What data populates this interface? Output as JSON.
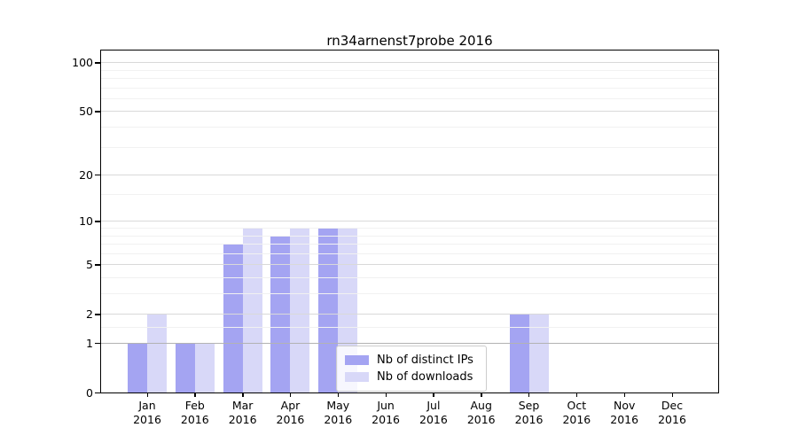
{
  "chart_data": {
    "type": "bar",
    "title": "rn34arnenst7probe 2016",
    "categories": [
      "Jan 2016",
      "Feb 2016",
      "Mar 2016",
      "Apr 2016",
      "May 2016",
      "Jun 2016",
      "Jul 2016",
      "Aug 2016",
      "Sep 2016",
      "Oct 2016",
      "Nov 2016",
      "Dec 2016"
    ],
    "series": [
      {
        "name": "Nb of distinct IPs",
        "color": "#a4a4f2",
        "values": [
          1,
          1,
          7,
          8,
          9,
          0,
          0,
          0,
          2,
          0,
          0,
          0
        ]
      },
      {
        "name": "Nb of downloads",
        "color": "#d8d8f8",
        "values": [
          2,
          1,
          9,
          9,
          9,
          0,
          0,
          0,
          2,
          0,
          0,
          0
        ]
      }
    ],
    "xlabel": "",
    "ylabel": "",
    "yscale": "log1p",
    "ylim": [
      0,
      118
    ],
    "yticks": [
      0,
      1,
      2,
      5,
      10,
      20,
      50,
      100
    ],
    "yticks_minor": [
      1.5,
      3,
      4,
      6,
      7,
      8,
      9,
      15,
      30,
      40,
      60,
      70,
      80,
      90
    ],
    "grid": "horizontal",
    "legend_position": "lower center, inside plot"
  },
  "colors": {
    "bar_distinct_ips": "#a4a4f2",
    "bar_downloads": "#d8d8f8",
    "grid_baseline_one": "#b3b3b3",
    "grid_major": "#d9d9d9",
    "grid_minor": "#f1f1f1",
    "spine": "#000000",
    "legend_border": "#cccccc"
  }
}
